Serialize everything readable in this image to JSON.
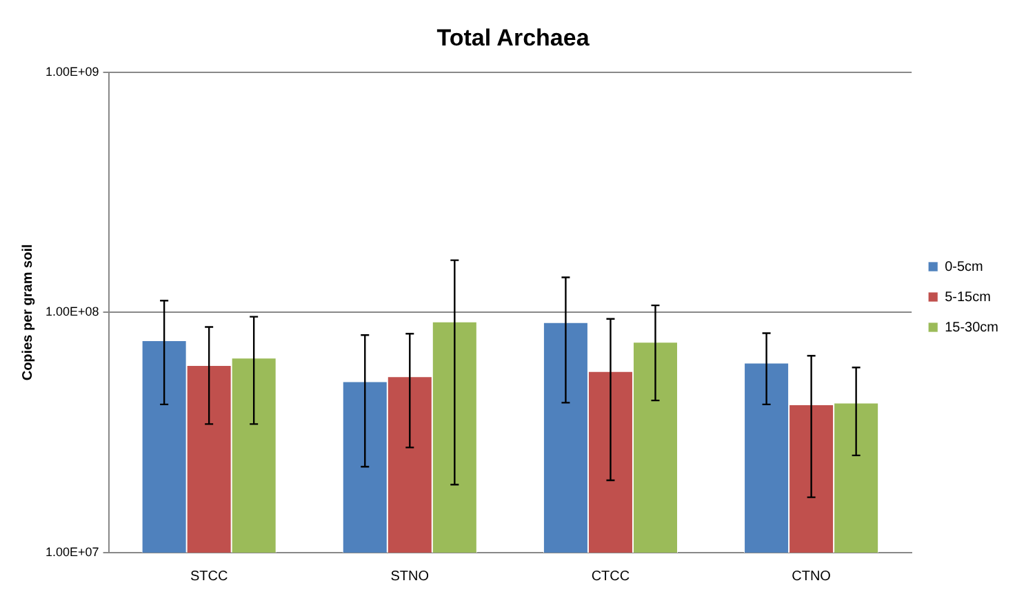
{
  "chart_data": {
    "type": "bar",
    "title": "Total Archaea",
    "ylabel": "Copies per gram soil",
    "categories": [
      "STCC",
      "STNO",
      "CTCC",
      "CTNO"
    ],
    "series": [
      {
        "name": "0-5cm",
        "color": "#4f81bd",
        "values": [
          76500000,
          51600000,
          91000000,
          61700000
        ],
        "errors": [
          [
            41400000,
            112000000
          ],
          [
            22800000,
            80500000
          ],
          [
            42100000,
            140000000
          ],
          [
            41400000,
            82000000
          ]
        ]
      },
      {
        "name": "5-15cm",
        "color": "#c0504d",
        "values": [
          60300000,
          54200000,
          56900000,
          41400000
        ],
        "errors": [
          [
            34300000,
            87000000
          ],
          [
            27400000,
            81600000
          ],
          [
            20000000,
            94000000
          ],
          [
            17000000,
            66000000
          ]
        ]
      },
      {
        "name": "15-30cm",
        "color": "#9bbb59",
        "values": [
          64700000,
          91500000,
          75300000,
          42100000
        ],
        "errors": [
          [
            34300000,
            96000000
          ],
          [
            19200000,
            165000000
          ],
          [
            43000000,
            107000000
          ],
          [
            25400000,
            59000000
          ]
        ]
      }
    ],
    "log": "y",
    "ylim": [
      10000000,
      1000000000
    ],
    "yticks": [
      {
        "value": 10000000,
        "label": "1.00E+07"
      },
      {
        "value": 100000000,
        "label": "1.00E+08"
      },
      {
        "value": 1000000000,
        "label": "1.00E+09"
      }
    ],
    "grid": "y",
    "legend": "right"
  }
}
